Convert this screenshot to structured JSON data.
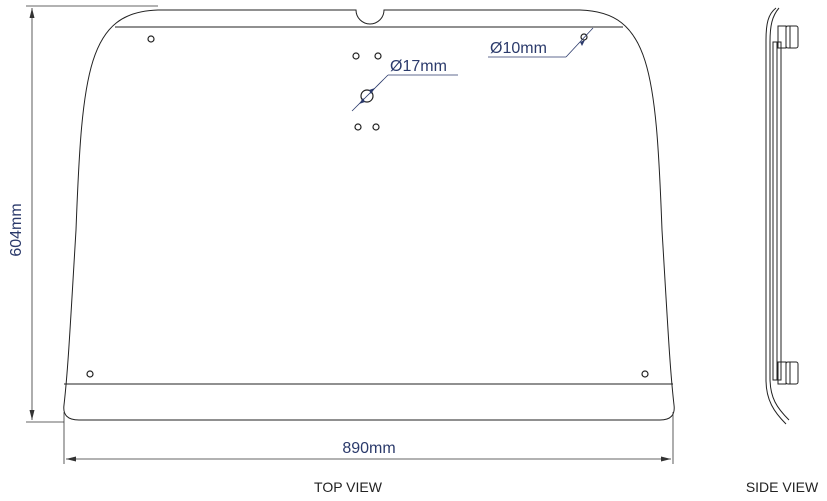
{
  "dimensions": {
    "height_label": "604mm",
    "width_label": "890mm",
    "center_hole_label": "Ø17mm",
    "mount_hole_label": "Ø10mm"
  },
  "views": {
    "top_label": "TOP VIEW",
    "side_label": "SIDE VIEW"
  },
  "colors": {
    "dimension_text": "#2b3a6b",
    "outline": "#222222"
  }
}
